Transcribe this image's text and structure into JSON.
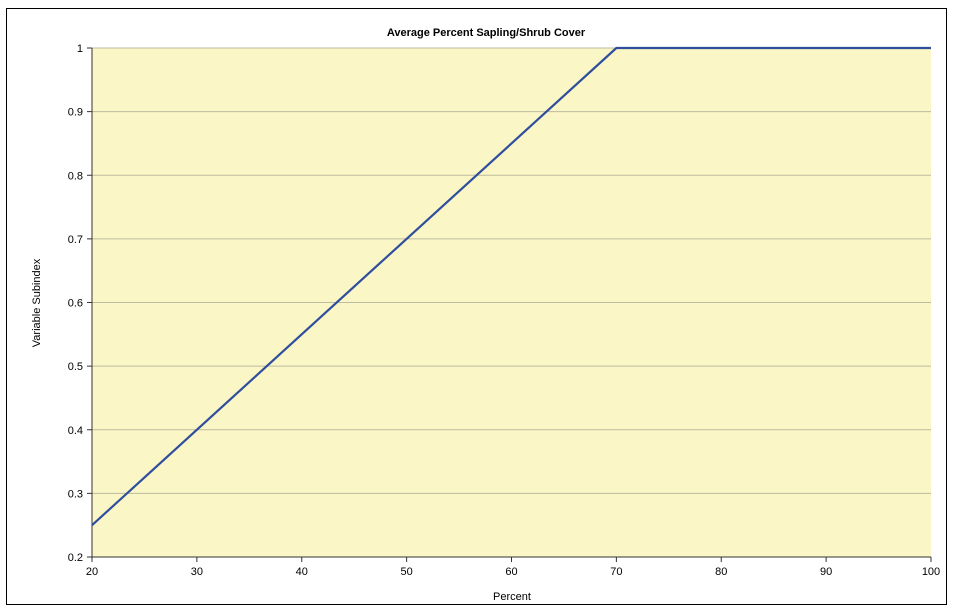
{
  "chart_data": {
    "type": "line",
    "title": "Average Percent Sapling/Shrub Cover",
    "xlabel": "Percent",
    "ylabel": "Variable Subindex",
    "xlim": [
      20,
      100
    ],
    "ylim": [
      0.2,
      1
    ],
    "x_ticks": [
      "20",
      "30",
      "40",
      "50",
      "60",
      "70",
      "80",
      "90",
      "100"
    ],
    "y_ticks": [
      "0.2",
      "0.3",
      "0.4",
      "0.5",
      "0.6",
      "0.7",
      "0.8",
      "0.9",
      "1"
    ],
    "grid": true,
    "legend": "none",
    "series": [
      {
        "x": [
          20,
          70,
          100
        ],
        "y": [
          0.25,
          1,
          1
        ]
      }
    ],
    "colors": {
      "plot_background": "#FBF6C6",
      "line": "#2F4E9E",
      "grid": "#BDBBA0"
    }
  }
}
